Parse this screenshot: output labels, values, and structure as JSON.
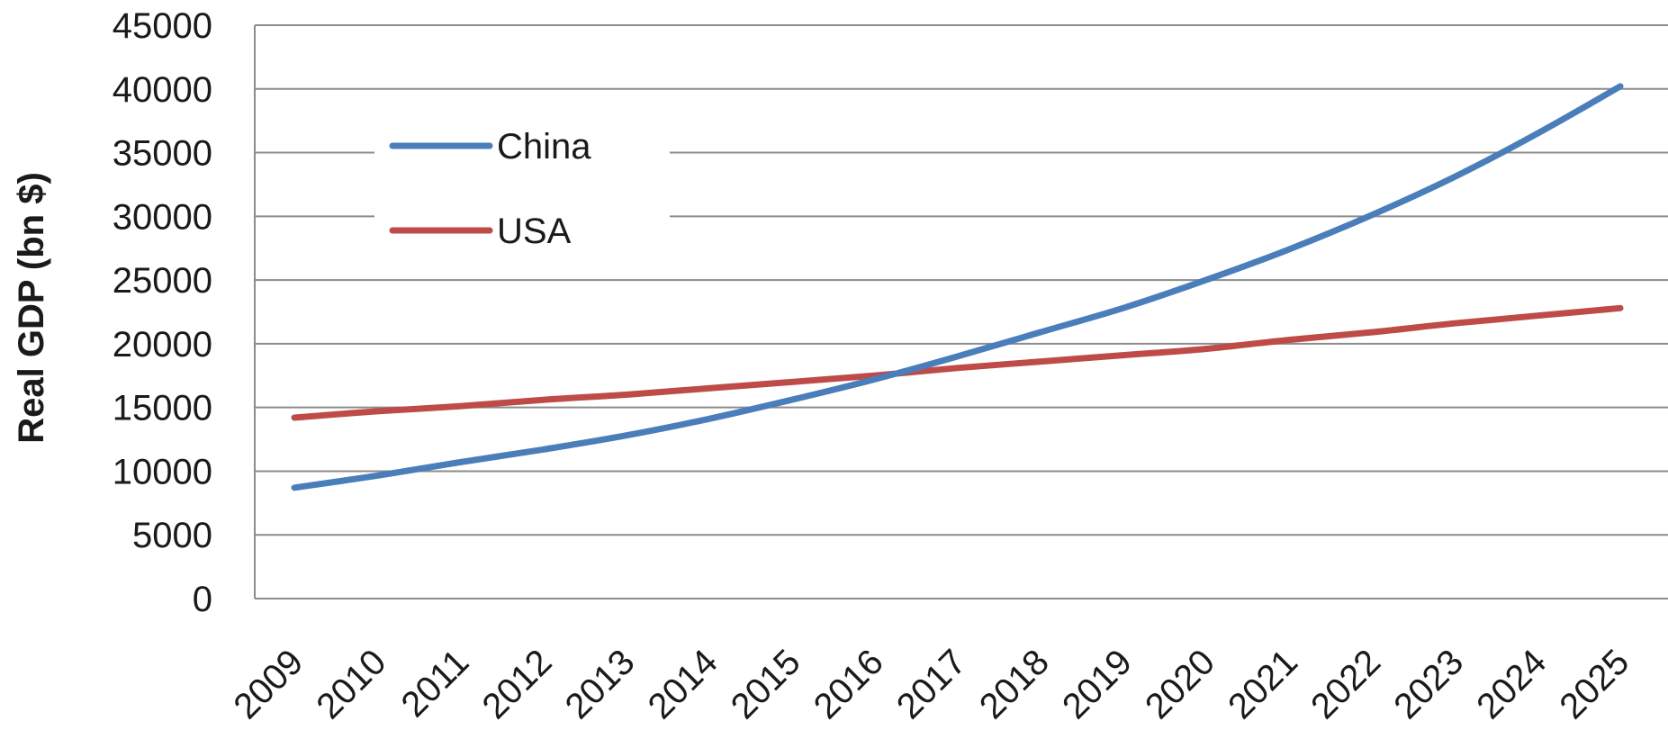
{
  "chart_data": {
    "type": "line",
    "title": "",
    "xlabel": "",
    "ylabel": "Real GDP (bn $)",
    "ylim": [
      0,
      45000
    ],
    "yticks": [
      "0",
      "5000",
      "10000",
      "15000",
      "20000",
      "25000",
      "30000",
      "35000",
      "40000",
      "45000"
    ],
    "grid": true,
    "legend_position": "top-left",
    "x": [
      "2009",
      "2010",
      "2011",
      "2012",
      "2013",
      "2014",
      "2015",
      "2016",
      "2017",
      "2018",
      "2019",
      "2020",
      "2021",
      "2022",
      "2023",
      "2024",
      "2025"
    ],
    "series": [
      {
        "name": "China",
        "color": "#4a7ebb",
        "values": [
          8700,
          9650,
          10700,
          11700,
          12800,
          14100,
          15600,
          17200,
          19000,
          20900,
          22800,
          25000,
          27400,
          30100,
          33100,
          36500,
          40200
        ]
      },
      {
        "name": "USA",
        "color": "#be4b48",
        "values": [
          14200,
          14700,
          15100,
          15600,
          16000,
          16500,
          17000,
          17500,
          18100,
          18600,
          19100,
          19600,
          20300,
          20900,
          21600,
          22200,
          22800
        ]
      }
    ]
  }
}
